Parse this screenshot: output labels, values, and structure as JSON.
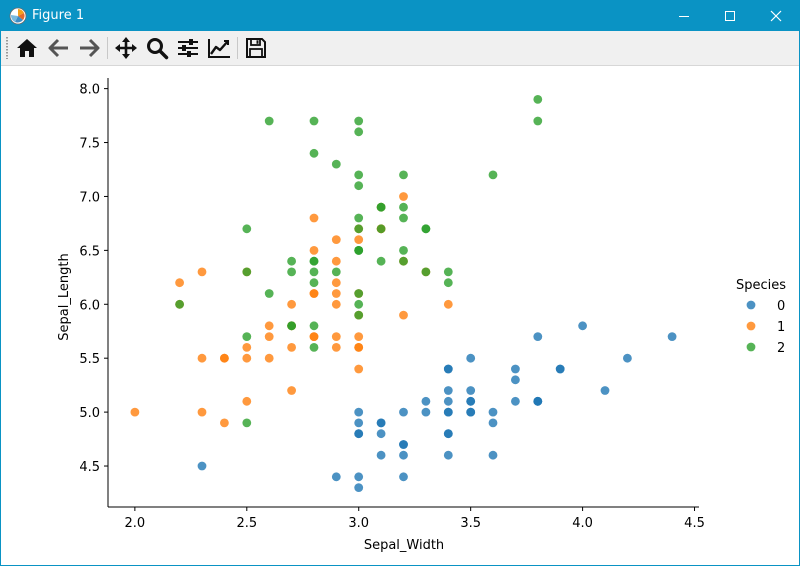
{
  "window": {
    "title": "Figure 1",
    "titlebar_color": "#0a93c4"
  },
  "toolbar": {
    "buttons": [
      {
        "name": "home-button",
        "icon": "home-icon"
      },
      {
        "name": "back-button",
        "icon": "arrow-left-icon"
      },
      {
        "name": "forward-button",
        "icon": "arrow-right-icon"
      },
      {
        "name": "pan-button",
        "icon": "move-icon"
      },
      {
        "name": "zoom-button",
        "icon": "magnifier-icon"
      },
      {
        "name": "configure-subplots-button",
        "icon": "sliders-icon"
      },
      {
        "name": "edit-axis-button",
        "icon": "line-chart-icon"
      },
      {
        "name": "save-button",
        "icon": "floppy-disk-icon"
      }
    ]
  },
  "chart_data": {
    "type": "scatter",
    "xlabel": "Sepal_Width",
    "ylabel": "Sepal_Length",
    "xlim": [
      1.88,
      4.52
    ],
    "ylim": [
      4.12,
      8.08
    ],
    "xticks": [
      "2.0",
      "2.5",
      "3.0",
      "3.5",
      "4.0",
      "4.5"
    ],
    "yticks": [
      "4.5",
      "5.0",
      "5.5",
      "6.0",
      "6.5",
      "7.0",
      "7.5",
      "8.0"
    ],
    "legend_title": "Species",
    "legend_position": "right",
    "series": [
      {
        "name": "0",
        "color": "#1f77b4",
        "points": [
          [
            3.5,
            5.1
          ],
          [
            3.0,
            4.9
          ],
          [
            3.2,
            4.7
          ],
          [
            3.1,
            4.6
          ],
          [
            3.6,
            5.0
          ],
          [
            3.9,
            5.4
          ],
          [
            3.4,
            4.6
          ],
          [
            3.4,
            5.0
          ],
          [
            2.9,
            4.4
          ],
          [
            3.1,
            4.9
          ],
          [
            3.7,
            5.4
          ],
          [
            3.4,
            4.8
          ],
          [
            3.0,
            4.8
          ],
          [
            3.0,
            4.3
          ],
          [
            4.0,
            5.8
          ],
          [
            4.4,
            5.7
          ],
          [
            3.9,
            5.4
          ],
          [
            3.5,
            5.1
          ],
          [
            3.8,
            5.7
          ],
          [
            3.8,
            5.1
          ],
          [
            3.4,
            5.4
          ],
          [
            3.7,
            5.1
          ],
          [
            3.6,
            4.6
          ],
          [
            3.3,
            5.1
          ],
          [
            3.4,
            4.8
          ],
          [
            3.0,
            5.0
          ],
          [
            3.4,
            5.0
          ],
          [
            3.5,
            5.2
          ],
          [
            3.4,
            5.2
          ],
          [
            3.2,
            4.7
          ],
          [
            3.1,
            4.8
          ],
          [
            3.4,
            5.4
          ],
          [
            4.1,
            5.2
          ],
          [
            4.2,
            5.5
          ],
          [
            3.1,
            4.9
          ],
          [
            3.2,
            5.0
          ],
          [
            3.5,
            5.5
          ],
          [
            3.6,
            4.9
          ],
          [
            3.0,
            4.4
          ],
          [
            3.4,
            5.1
          ],
          [
            3.5,
            5.0
          ],
          [
            2.3,
            4.5
          ],
          [
            3.2,
            4.4
          ],
          [
            3.5,
            5.0
          ],
          [
            3.8,
            5.1
          ],
          [
            3.0,
            4.8
          ],
          [
            3.8,
            5.1
          ],
          [
            3.2,
            4.6
          ],
          [
            3.7,
            5.3
          ],
          [
            3.3,
            5.0
          ]
        ]
      },
      {
        "name": "1",
        "color": "#ff7f0e",
        "points": [
          [
            3.2,
            7.0
          ],
          [
            3.2,
            6.4
          ],
          [
            3.1,
            6.9
          ],
          [
            2.3,
            5.5
          ],
          [
            2.8,
            6.5
          ],
          [
            2.8,
            5.7
          ],
          [
            3.3,
            6.3
          ],
          [
            2.4,
            4.9
          ],
          [
            2.9,
            6.6
          ],
          [
            2.7,
            5.2
          ],
          [
            2.0,
            5.0
          ],
          [
            3.0,
            5.9
          ],
          [
            2.2,
            6.0
          ],
          [
            2.9,
            6.1
          ],
          [
            2.9,
            5.6
          ],
          [
            3.1,
            6.7
          ],
          [
            3.0,
            5.6
          ],
          [
            2.7,
            5.8
          ],
          [
            2.2,
            6.2
          ],
          [
            2.5,
            5.6
          ],
          [
            3.2,
            5.9
          ],
          [
            2.8,
            6.1
          ],
          [
            2.5,
            6.3
          ],
          [
            2.8,
            6.1
          ],
          [
            2.9,
            6.4
          ],
          [
            3.0,
            6.6
          ],
          [
            2.8,
            6.8
          ],
          [
            3.0,
            6.7
          ],
          [
            2.9,
            6.0
          ],
          [
            2.6,
            5.7
          ],
          [
            2.4,
            5.5
          ],
          [
            2.4,
            5.5
          ],
          [
            2.7,
            5.8
          ],
          [
            2.7,
            6.0
          ],
          [
            3.0,
            5.4
          ],
          [
            3.4,
            6.0
          ],
          [
            3.1,
            6.7
          ],
          [
            2.3,
            6.3
          ],
          [
            3.0,
            5.6
          ],
          [
            2.5,
            5.5
          ],
          [
            2.6,
            5.5
          ],
          [
            3.0,
            6.1
          ],
          [
            2.6,
            5.8
          ],
          [
            2.3,
            5.0
          ],
          [
            2.7,
            5.6
          ],
          [
            3.0,
            5.7
          ],
          [
            2.9,
            5.7
          ],
          [
            2.9,
            6.2
          ],
          [
            2.5,
            5.1
          ],
          [
            2.8,
            5.7
          ]
        ]
      },
      {
        "name": "2",
        "color": "#2ca02c",
        "points": [
          [
            3.3,
            6.3
          ],
          [
            2.7,
            5.8
          ],
          [
            3.0,
            7.1
          ],
          [
            2.9,
            6.3
          ],
          [
            3.0,
            6.5
          ],
          [
            3.0,
            7.6
          ],
          [
            2.5,
            4.9
          ],
          [
            2.9,
            7.3
          ],
          [
            2.5,
            6.7
          ],
          [
            3.6,
            7.2
          ],
          [
            3.2,
            6.5
          ],
          [
            2.7,
            6.4
          ],
          [
            3.0,
            6.8
          ],
          [
            2.5,
            5.7
          ],
          [
            2.8,
            5.8
          ],
          [
            3.2,
            6.4
          ],
          [
            3.0,
            6.5
          ],
          [
            3.8,
            7.7
          ],
          [
            2.6,
            7.7
          ],
          [
            2.2,
            6.0
          ],
          [
            3.2,
            6.9
          ],
          [
            2.8,
            5.6
          ],
          [
            2.8,
            7.7
          ],
          [
            2.7,
            6.3
          ],
          [
            3.3,
            6.7
          ],
          [
            3.2,
            7.2
          ],
          [
            2.8,
            6.2
          ],
          [
            3.0,
            6.1
          ],
          [
            2.8,
            6.4
          ],
          [
            3.0,
            7.2
          ],
          [
            2.8,
            7.4
          ],
          [
            3.8,
            7.9
          ],
          [
            2.8,
            6.4
          ],
          [
            2.8,
            6.3
          ],
          [
            2.6,
            6.1
          ],
          [
            3.0,
            7.7
          ],
          [
            3.4,
            6.3
          ],
          [
            3.1,
            6.4
          ],
          [
            3.0,
            6.0
          ],
          [
            3.1,
            6.9
          ],
          [
            3.1,
            6.7
          ],
          [
            3.1,
            6.9
          ],
          [
            2.7,
            5.8
          ],
          [
            3.2,
            6.8
          ],
          [
            3.3,
            6.7
          ],
          [
            3.0,
            6.7
          ],
          [
            2.5,
            6.3
          ],
          [
            3.0,
            6.5
          ],
          [
            3.4,
            6.2
          ],
          [
            3.0,
            5.9
          ]
        ]
      }
    ]
  }
}
